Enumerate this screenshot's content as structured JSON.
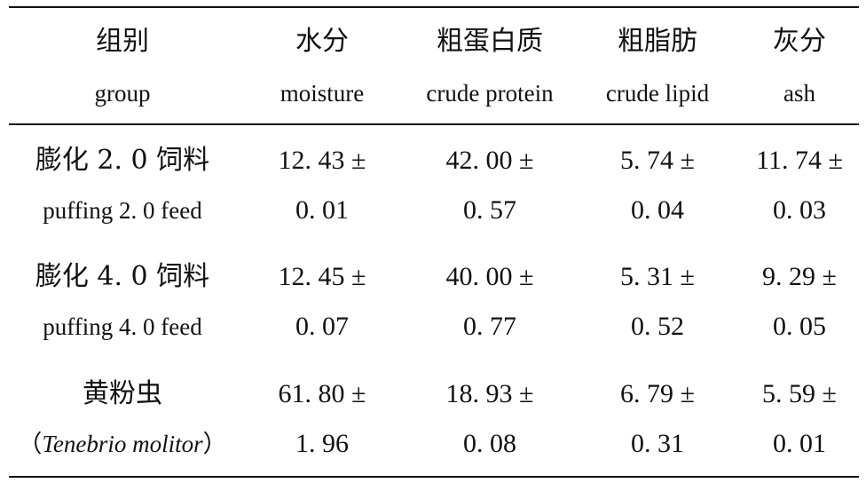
{
  "columns": [
    {
      "cn": "组别",
      "en": "group"
    },
    {
      "cn": "水分",
      "en": "moisture"
    },
    {
      "cn": "粗蛋白质",
      "en": "crude protein"
    },
    {
      "cn": "粗脂肪",
      "en": "crude lipid"
    },
    {
      "cn": "灰分",
      "en": "ash"
    }
  ],
  "rows": [
    {
      "group_cn": "膨化 2. 0 饲料",
      "group_en": "puffing 2. 0 feed",
      "values": [
        {
          "mean": "12. 43 ±",
          "sd": "0. 01"
        },
        {
          "mean": "42. 00 ±",
          "sd": "0. 57"
        },
        {
          "mean": "5. 74 ±",
          "sd": "0. 04"
        },
        {
          "mean": "11. 74 ±",
          "sd": "0. 03"
        }
      ]
    },
    {
      "group_cn": "膨化 4. 0 饲料",
      "group_en": "puffing 4. 0 feed",
      "values": [
        {
          "mean": "12. 45 ±",
          "sd": "0. 07"
        },
        {
          "mean": "40. 00 ±",
          "sd": "0. 77"
        },
        {
          "mean": "5. 31 ±",
          "sd": "0. 52"
        },
        {
          "mean": "9. 29 ±",
          "sd": "0. 05"
        }
      ]
    },
    {
      "group_cn": "黄粉虫",
      "group_en_open": "（",
      "group_en_italic": "Tenebrio molitor",
      "group_en_close": "）",
      "values": [
        {
          "mean": "61. 80 ±",
          "sd": "1. 96"
        },
        {
          "mean": "18. 93 ±",
          "sd": "0. 08"
        },
        {
          "mean": "6. 79 ±",
          "sd": "0. 31"
        },
        {
          "mean": "5. 59 ±",
          "sd": "0. 01"
        }
      ]
    }
  ]
}
